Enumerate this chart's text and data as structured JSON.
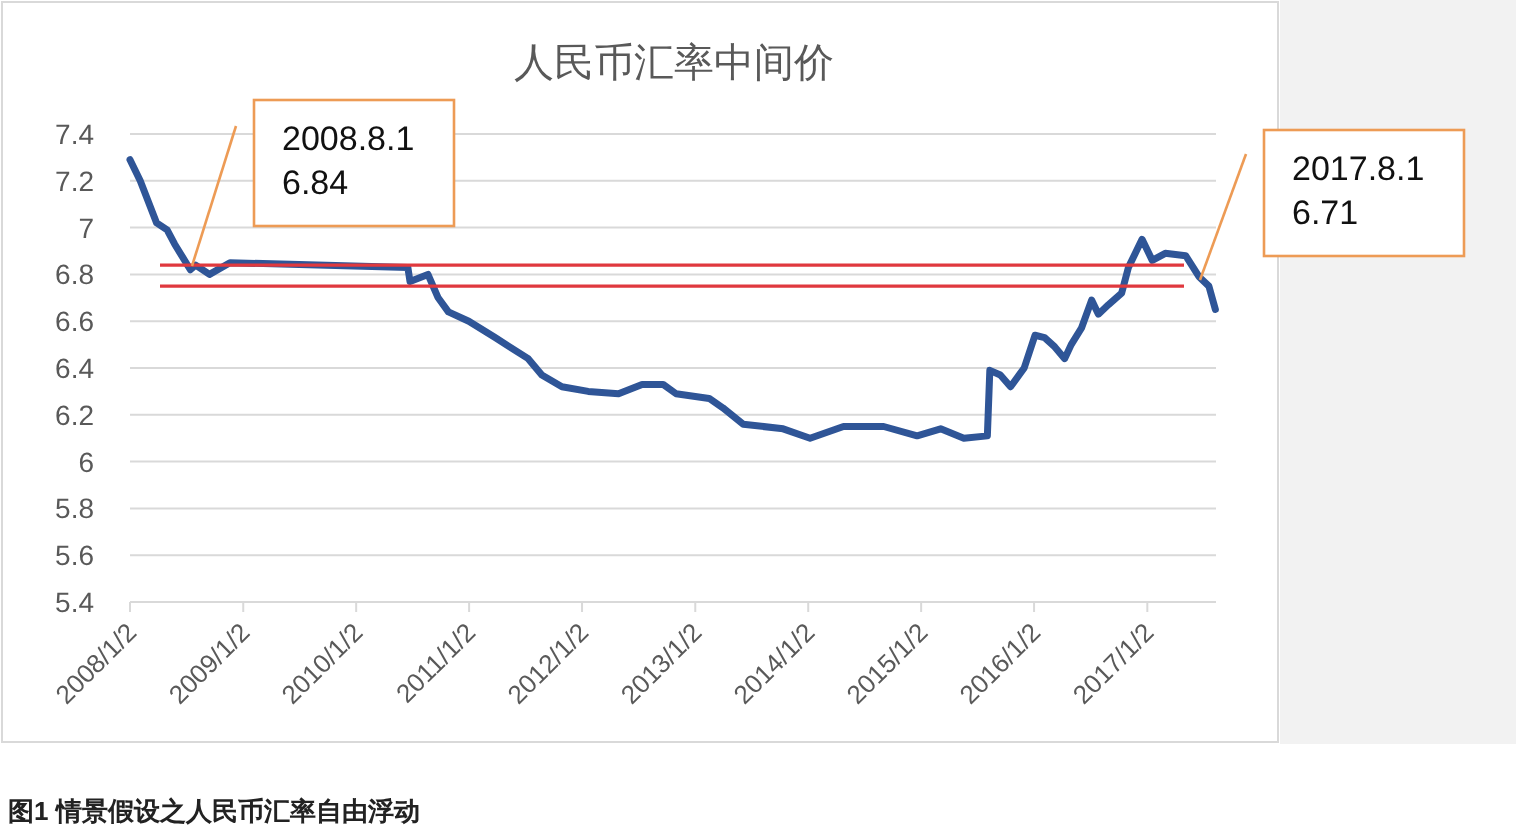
{
  "chart_data": {
    "type": "line",
    "title": "人民币汇率中间价",
    "x": [
      "2008-01-02",
      "2008-02-04",
      "2008-03-28",
      "2008-05-01",
      "2008-05-25",
      "2008-07-15",
      "2008-08-01",
      "2008-09-15",
      "2008-11-20",
      "2010-06-18",
      "2010-06-25",
      "2010-08-22",
      "2010-09-24",
      "2010-10-27",
      "2011-01-01",
      "2011-03-27",
      "2011-07-12",
      "2011-08-25",
      "2011-10-29",
      "2012-01-22",
      "2012-04-29",
      "2012-07-14",
      "2012-09-20",
      "2012-11-01",
      "2013-02-16",
      "2013-04-01",
      "2013-06-06",
      "2013-10-13",
      "2014-01-08",
      "2014-04-26",
      "2014-09-03",
      "2014-12-20",
      "2015-03-06",
      "2015-05-20",
      "2015-08-04",
      "2015-08-12",
      "2015-09-15",
      "2015-10-18",
      "2015-12-01",
      "2016-01-05",
      "2016-02-05",
      "2016-03-09",
      "2016-04-10",
      "2016-05-01",
      "2016-06-03",
      "2016-07-06",
      "2016-07-28",
      "2016-08-29",
      "2016-10-11",
      "2016-11-02",
      "2016-12-16",
      "2017-01-18",
      "2017-03-01",
      "2017-05-06",
      "2017-06-18",
      "2017-07-20",
      "2017-08-10"
    ],
    "series": [
      {
        "color": "#2f5597",
        "values": [
          7.29,
          7.2,
          7.02,
          6.99,
          6.93,
          6.82,
          6.84,
          6.8,
          6.85,
          6.83,
          6.77,
          6.8,
          6.7,
          6.64,
          6.6,
          6.53,
          6.44,
          6.37,
          6.32,
          6.3,
          6.29,
          6.33,
          6.33,
          6.29,
          6.27,
          6.23,
          6.16,
          6.14,
          6.1,
          6.15,
          6.15,
          6.11,
          6.14,
          6.1,
          6.11,
          6.39,
          6.37,
          6.32,
          6.4,
          6.54,
          6.53,
          6.49,
          6.44,
          6.5,
          6.57,
          6.69,
          6.63,
          6.67,
          6.72,
          6.83,
          6.95,
          6.86,
          6.89,
          6.88,
          6.79,
          6.75,
          6.65
        ]
      }
    ],
    "xlim": [
      "2008-01-02",
      "2017-08-12"
    ],
    "xticks": [
      {
        "value": "2008-01-02",
        "label": "2008/1/2"
      },
      {
        "value": "2009-01-02",
        "label": "2009/1/2"
      },
      {
        "value": "2010-01-02",
        "label": "2010/1/2"
      },
      {
        "value": "2011-01-02",
        "label": "2011/1/2"
      },
      {
        "value": "2012-01-02",
        "label": "2012/1/2"
      },
      {
        "value": "2013-01-02",
        "label": "2013/1/2"
      },
      {
        "value": "2014-01-02",
        "label": "2014/1/2"
      },
      {
        "value": "2015-01-02",
        "label": "2015/1/2"
      },
      {
        "value": "2016-01-02",
        "label": "2016/1/2"
      },
      {
        "value": "2017-01-02",
        "label": "2017/1/2"
      }
    ],
    "ylim": [
      5.4,
      7.4
    ],
    "yticks": [
      5.4,
      5.6,
      5.8,
      6,
      6.2,
      6.4,
      6.6,
      6.8,
      7,
      7.2,
      7.4
    ],
    "grid": "y",
    "marker": "none",
    "line_style": "solid",
    "ref_lines": [
      {
        "axis": "y",
        "value": 6.84,
        "color": "#e0393e"
      },
      {
        "axis": "y",
        "value": 6.75,
        "color": "#e0393e"
      }
    ],
    "annotations": [
      "2008.8.1\n6.84",
      "2017.8.1\n6.71",
      "图1 情景假设之人民币汇率自由浮动"
    ]
  }
}
